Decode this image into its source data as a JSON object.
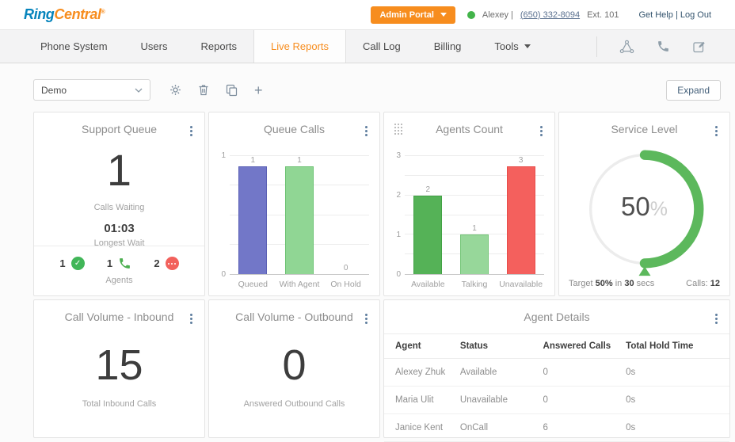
{
  "brand": {
    "logo_part1": "Ring",
    "logo_part2": "Central",
    "logo_mark": "®",
    "blue": "#0684bc",
    "orange": "#f78d1e"
  },
  "header": {
    "admin_portal_label": "Admin Portal",
    "status_dot_color": "#43b44a",
    "user_name": "Alexey |",
    "user_phone": "(650) 332-8094",
    "user_ext": "Ext. 101",
    "help_link": "Get Help",
    "link_separator": "|",
    "logout_link": "Log Out"
  },
  "nav": {
    "tabs": [
      {
        "label": "Phone System",
        "active": false
      },
      {
        "label": "Users",
        "active": false
      },
      {
        "label": "Reports",
        "active": false
      },
      {
        "label": "Live Reports",
        "active": true
      },
      {
        "label": "Call Log",
        "active": false
      },
      {
        "label": "Billing",
        "active": false
      },
      {
        "label": "Tools",
        "active": false,
        "has_dropdown": true
      }
    ],
    "icons": [
      "share-network-icon",
      "phone-icon",
      "call-log-compose-icon"
    ]
  },
  "toolbar": {
    "dashboard_select_value": "Demo",
    "icons": [
      "gear-icon",
      "trash-icon",
      "copy-icon",
      "plus-icon"
    ],
    "expand_label": "Expand"
  },
  "cards": {
    "support_queue": {
      "title": "Support Queue",
      "calls_waiting_value": "1",
      "calls_waiting_label": "Calls Waiting",
      "longest_wait_value": "01:03",
      "longest_wait_label": "Longest Wait",
      "agents_label": "Agents",
      "agent_stats": [
        {
          "count": "1",
          "status": "available"
        },
        {
          "count": "1",
          "status": "on-call"
        },
        {
          "count": "2",
          "status": "unavailable"
        }
      ]
    },
    "queue_calls": {
      "title": "Queue Calls"
    },
    "agents_count": {
      "title": "Agents Count"
    },
    "service_level": {
      "title": "Service Level",
      "percent_value": "50",
      "percent_sign": "%",
      "target_prefix": "Target",
      "target_percent": "50%",
      "target_infix": "in",
      "target_seconds": "30",
      "target_suffix": "secs",
      "calls_label": "Calls:",
      "calls_value": "12",
      "gauge_color": "#5cb85c"
    },
    "call_volume_inbound": {
      "title": "Call Volume - Inbound",
      "value": "15",
      "label": "Total Inbound Calls"
    },
    "call_volume_outbound": {
      "title": "Call Volume - Outbound",
      "value": "0",
      "label": "Answered Outbound Calls"
    },
    "agent_details": {
      "title": "Agent Details",
      "columns": [
        "Agent",
        "Status",
        "Answered Calls",
        "Total Hold Time"
      ],
      "rows": [
        [
          "Alexey Zhuk",
          "Available",
          "0",
          "0s"
        ],
        [
          "Maria Ulit",
          "Unavailable",
          "0",
          "0s"
        ],
        [
          "Janice Kent",
          "OnCall",
          "6",
          "0s"
        ]
      ]
    }
  },
  "chart_data": [
    {
      "type": "bar",
      "title": "Queue Calls",
      "categories": [
        "Queued",
        "With Agent",
        "On Hold"
      ],
      "values": [
        1,
        1,
        0
      ],
      "colors": [
        "#7277c8",
        "#90d694",
        "#90d694"
      ],
      "border_colors": [
        "#5a5fb5",
        "#6cc273",
        "#6cc273"
      ],
      "ylim": [
        0,
        1
      ],
      "yticks": [
        0,
        1
      ],
      "minor_divisions": 4,
      "grid": true,
      "legend": false
    },
    {
      "type": "bar",
      "title": "Agents Count",
      "categories": [
        "Available",
        "Talking",
        "Unavailable"
      ],
      "values": [
        2,
        1,
        3
      ],
      "colors": [
        "#55b257",
        "#97d79a",
        "#f4605d"
      ],
      "border_colors": [
        "#41a244",
        "#74c577",
        "#e84c49"
      ],
      "ylim": [
        0,
        3
      ],
      "yticks": [
        0,
        1,
        2,
        3
      ],
      "minor_divisions": 6,
      "grid": true,
      "legend": false
    },
    {
      "type": "donut",
      "title": "Service Level",
      "value": 50,
      "max": 100,
      "center_label": "50%",
      "color": "#5cb85c",
      "track_color": "#ececec",
      "annotations": [
        "Target 50% in 30 secs",
        "Calls: 12"
      ]
    }
  ]
}
